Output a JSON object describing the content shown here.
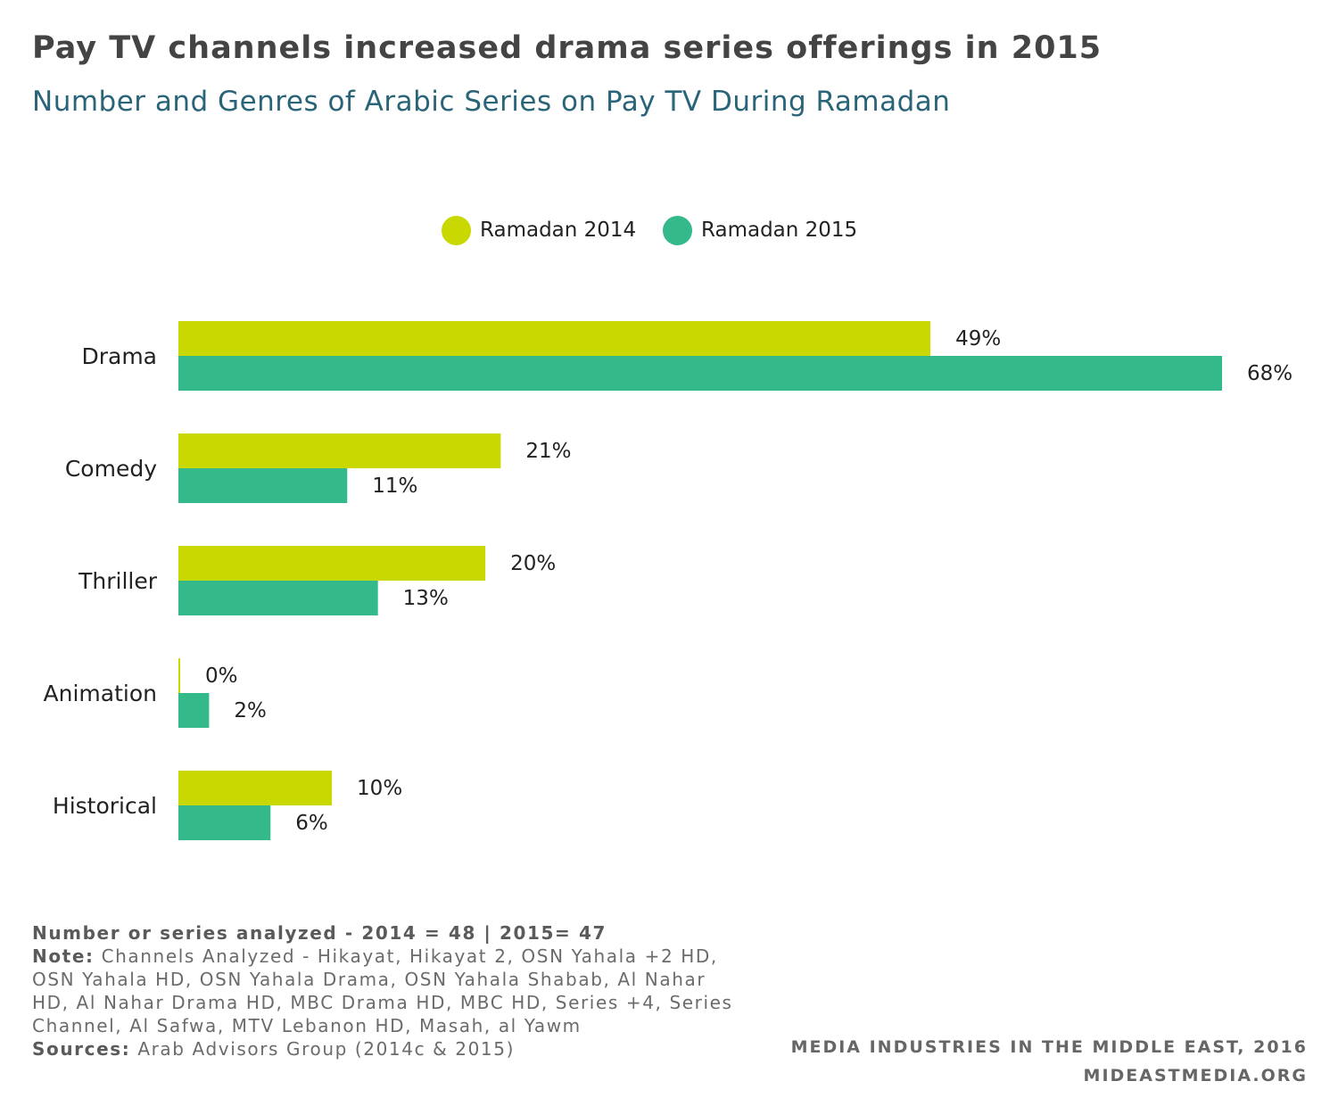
{
  "title": "Pay TV channels increased drama series offerings in 2015",
  "subtitle": "Number and Genres of Arabic Series on Pay TV During Ramadan",
  "colors": {
    "series_2014": "#c8d800",
    "series_2015": "#33b98a",
    "title": "#444444",
    "subtitle": "#2a6478"
  },
  "chart_data": {
    "type": "bar",
    "orientation": "horizontal",
    "categories": [
      "Drama",
      "Comedy",
      "Thriller",
      "Animation",
      "Historical"
    ],
    "series": [
      {
        "name": "Ramadan 2014",
        "values": [
          49,
          21,
          20,
          0,
          10
        ],
        "labels": [
          "49%",
          "21%",
          "20%",
          "0%",
          "10%"
        ]
      },
      {
        "name": "Ramadan 2015",
        "values": [
          68,
          11,
          13,
          2,
          6
        ],
        "labels": [
          "68%",
          "11%",
          "13%",
          "2%",
          "6%"
        ]
      }
    ],
    "unit": "%",
    "legend_position": "top-center",
    "grid": false
  },
  "notes": {
    "count_line": "Number or series analyzed - 2014 = 48 | 2015= 47",
    "note_label": "Note:",
    "note_text": " Channels Analyzed - Hikayat, Hikayat 2, OSN Yahala +2 HD, OSN Yahala HD, OSN Yahala Drama, OSN Yahala Shabab, Al Nahar HD, Al Nahar Drama HD, MBC Drama HD, MBC HD, Series +4, Series Channel, Al Safwa, MTV Lebanon HD, Masah, al Yawm",
    "sources_label": "Sources:",
    "sources_text": " Arab Advisors Group (2014c & 2015)"
  },
  "footer": {
    "line1": "MEDIA INDUSTRIES IN THE MIDDLE EAST, 2016",
    "line2": "MIDEASTMEDIA.ORG"
  }
}
